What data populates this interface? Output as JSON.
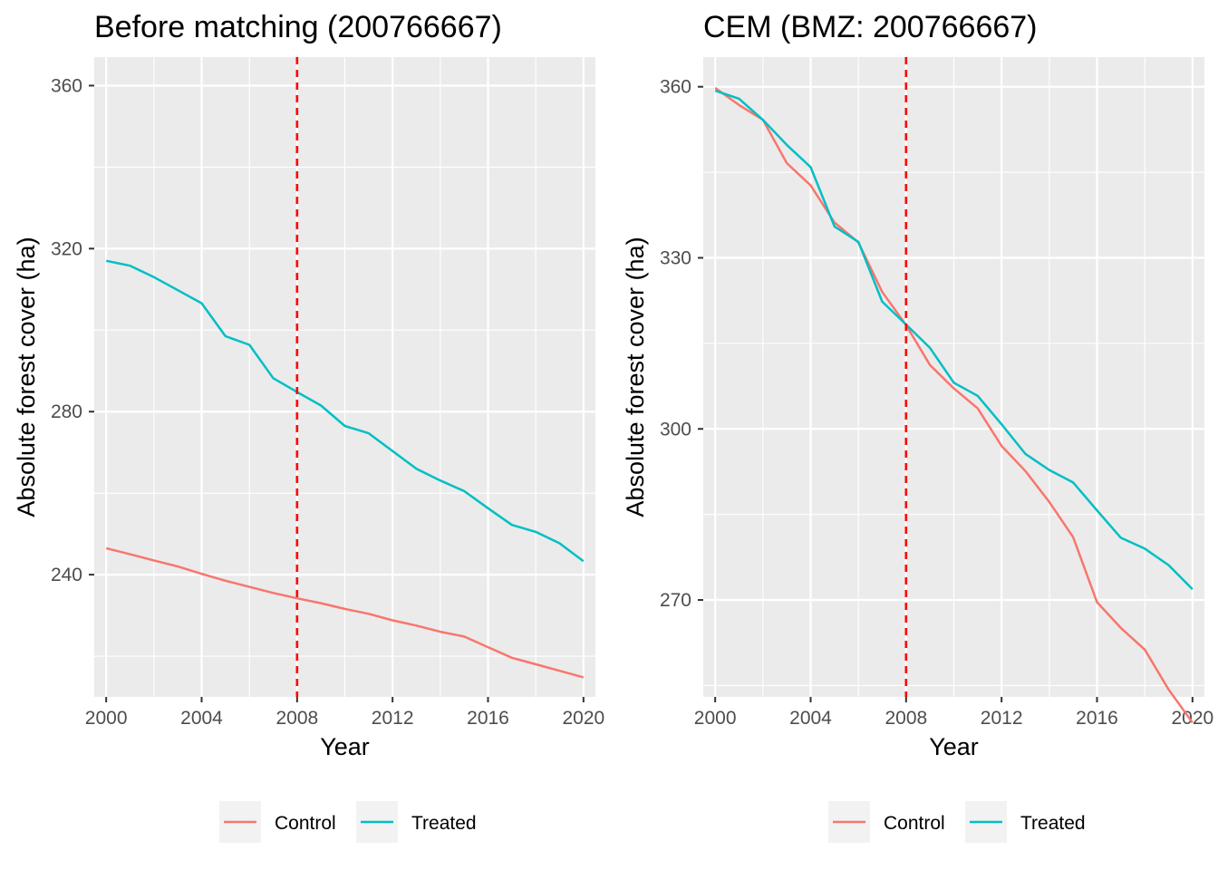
{
  "chart_data": [
    {
      "type": "line",
      "title": "Before matching (200766667)",
      "xlabel": "Year",
      "ylabel": "Absolute forest cover (ha)",
      "xlim": [
        1999.5,
        2020.5
      ],
      "ylim": [
        210,
        367
      ],
      "xticks": [
        2000,
        2004,
        2008,
        2012,
        2016,
        2020
      ],
      "yticks": [
        240,
        280,
        320,
        360
      ],
      "grid": true,
      "legend_position": "bottom",
      "reference_line": {
        "x": 2008,
        "style": "dashed",
        "color": "#ff0000"
      },
      "x": [
        2000,
        2001,
        2002,
        2003,
        2004,
        2005,
        2006,
        2007,
        2008,
        2009,
        2010,
        2011,
        2012,
        2013,
        2014,
        2015,
        2016,
        2017,
        2018,
        2019,
        2020
      ],
      "series": [
        {
          "name": "Control",
          "color": "#F8766D",
          "values": [
            246.5,
            245.0,
            243.5,
            242.0,
            240.2,
            238.5,
            237.0,
            235.5,
            234.2,
            233.0,
            231.6,
            230.4,
            228.8,
            227.5,
            226.0,
            224.8,
            222.2,
            219.6,
            218.0,
            216.4,
            214.8
          ]
        },
        {
          "name": "Treated",
          "color": "#00BFC4",
          "values": [
            317.0,
            315.8,
            313.0,
            309.8,
            306.6,
            298.5,
            296.4,
            288.2,
            284.8,
            281.5,
            276.5,
            274.7,
            270.3,
            266.0,
            263.1,
            260.5,
            256.3,
            252.2,
            250.5,
            247.7,
            243.3
          ]
        }
      ]
    },
    {
      "type": "line",
      "title": "CEM (BMZ: 200766667)",
      "xlabel": "Year",
      "ylabel": "Absolute forest cover (ha)",
      "xlim": [
        1999.5,
        2020.5
      ],
      "ylim": [
        253.0,
        365.2
      ],
      "xticks": [
        2000,
        2004,
        2008,
        2012,
        2016,
        2020
      ],
      "yticks": [
        270,
        300,
        330,
        360
      ],
      "grid": true,
      "legend_position": "bottom",
      "reference_line": {
        "x": 2008,
        "style": "dashed",
        "color": "#ff0000"
      },
      "x": [
        2000,
        2001,
        2002,
        2003,
        2004,
        2005,
        2006,
        2007,
        2008,
        2009,
        2010,
        2011,
        2012,
        2013,
        2014,
        2015,
        2016,
        2017,
        2018,
        2019,
        2020
      ],
      "series": [
        {
          "name": "Control",
          "color": "#F8766D",
          "values": [
            359.8,
            356.8,
            354.2,
            346.6,
            342.7,
            336.2,
            332.7,
            324.0,
            318.2,
            311.2,
            307.1,
            303.6,
            297.0,
            292.6,
            287.2,
            281.0,
            269.6,
            265.1,
            261.3,
            254.3,
            248.5
          ]
        },
        {
          "name": "Treated",
          "color": "#00BFC4",
          "values": [
            359.3,
            357.9,
            354.2,
            349.8,
            345.9,
            335.5,
            332.8,
            322.3,
            318.3,
            314.2,
            308.1,
            305.8,
            300.8,
            295.6,
            292.8,
            290.6,
            285.7,
            280.9,
            279.0,
            276.1,
            271.9
          ]
        }
      ]
    }
  ]
}
